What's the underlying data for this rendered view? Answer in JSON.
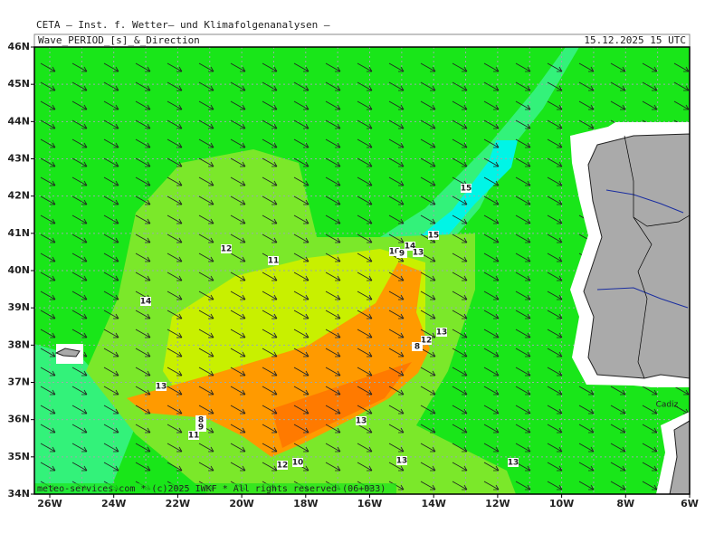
{
  "header": {
    "title": "CETA — Inst. f. Wetter— und Klimafolgenanalysen —",
    "subtitle": "Wave_PERIOD_[s]_&_Direction",
    "date": "15.12.2025 15 UTC"
  },
  "lat_labels": [
    "46N",
    "45N",
    "44N",
    "43N",
    "42N",
    "41N",
    "40N",
    "39N",
    "38N",
    "37N",
    "36N",
    "35N",
    "34N"
  ],
  "lon_labels": [
    "26W",
    "24W",
    "22W",
    "20W",
    "18W",
    "16W",
    "14W",
    "12W",
    "10W",
    "8W",
    "6W"
  ],
  "contour_labels": [
    "12",
    "11",
    "14",
    "13",
    "10",
    "9",
    "14",
    "13",
    "15",
    "15",
    "13",
    "12",
    "8",
    "8",
    "9",
    "11",
    "13",
    "12",
    "10",
    "13",
    "13"
  ],
  "place": "Cadiz",
  "footer": "meteo-services.com * (c)2025 IWKF * All rights reserved (06+033)"
}
